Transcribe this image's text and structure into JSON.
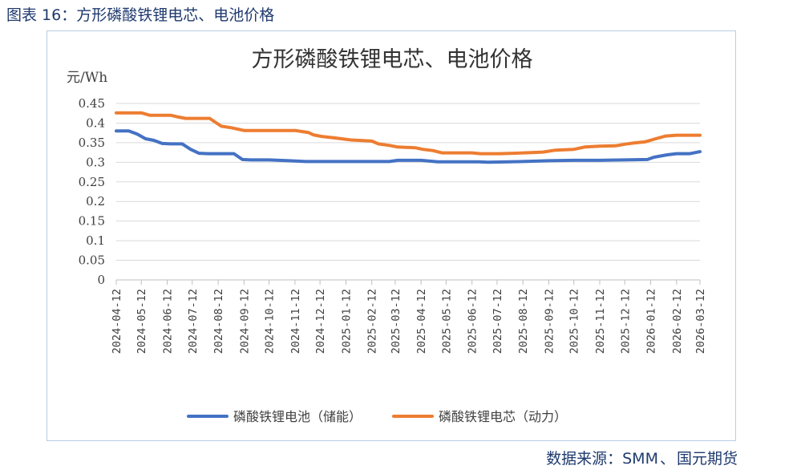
{
  "figure_caption": "图表 16：方形磷酸铁锂电芯、电池价格",
  "source": {
    "label": "数据来源：",
    "orgs": [
      "SMM",
      "国元期货"
    ],
    "separator": "、"
  },
  "colors": {
    "series_storage": "#4472c4",
    "series_power": "#ed7d31",
    "grid": "#d9d9d9",
    "axis_text": "#404040",
    "frame": "#b8cde3"
  },
  "chart_data": {
    "type": "line",
    "title": "方形磷酸铁锂电芯、电池价格",
    "ylabel": "元/Wh",
    "xlabel": "",
    "ylim": [
      0,
      0.45
    ],
    "yticks": [
      0,
      0.05,
      0.1,
      0.15,
      0.2,
      0.25,
      0.3,
      0.35,
      0.4,
      0.45
    ],
    "ytick_labels": [
      "0",
      "0.05",
      "0.1",
      "0.15",
      "0.2",
      "0.25",
      "0.3",
      "0.35",
      "0.4",
      "0.45"
    ],
    "x_ticks": [
      "2024-04-12",
      "2024-05-12",
      "2024-06-12",
      "2024-07-12",
      "2024-08-12",
      "2024-09-12",
      "2024-10-12",
      "2024-11-12",
      "2024-12-12",
      "2025-01-12",
      "2025-02-12",
      "2025-03-12",
      "2025-04-12",
      "2025-05-12",
      "2025-06-12",
      "2025-07-12",
      "2025-08-12",
      "2025-09-12",
      "2025-10-12",
      "2025-11-12",
      "2025-12-12",
      "2026-01-12",
      "2026-02-12",
      "2026-03-12"
    ],
    "grid": true,
    "legend_position": "bottom",
    "series": [
      {
        "name": "磷酸铁锂电池（储能）",
        "color": "#4472c4",
        "points": [
          [
            "2024-04-12",
            0.38
          ],
          [
            "2024-04-27",
            0.38
          ],
          [
            "2024-05-07",
            0.372
          ],
          [
            "2024-05-17",
            0.36
          ],
          [
            "2024-05-27",
            0.356
          ],
          [
            "2024-06-06",
            0.348
          ],
          [
            "2024-06-16",
            0.347
          ],
          [
            "2024-06-30",
            0.347
          ],
          [
            "2024-07-10",
            0.333
          ],
          [
            "2024-07-20",
            0.323
          ],
          [
            "2024-07-31",
            0.322
          ],
          [
            "2024-08-31",
            0.322
          ],
          [
            "2024-09-10",
            0.307
          ],
          [
            "2024-09-20",
            0.306
          ],
          [
            "2024-10-12",
            0.306
          ],
          [
            "2024-11-05",
            0.304
          ],
          [
            "2024-11-25",
            0.302
          ],
          [
            "2025-03-05",
            0.302
          ],
          [
            "2025-03-15",
            0.305
          ],
          [
            "2025-04-12",
            0.305
          ],
          [
            "2025-05-02",
            0.301
          ],
          [
            "2025-06-20",
            0.301
          ],
          [
            "2025-07-01",
            0.3
          ],
          [
            "2025-08-12",
            0.302
          ],
          [
            "2025-09-12",
            0.304
          ],
          [
            "2025-10-12",
            0.305
          ],
          [
            "2025-11-12",
            0.305
          ],
          [
            "2025-12-12",
            0.306
          ],
          [
            "2026-01-08",
            0.307
          ],
          [
            "2026-01-16",
            0.313
          ],
          [
            "2026-02-01",
            0.319
          ],
          [
            "2026-02-12",
            0.322
          ],
          [
            "2026-02-28",
            0.322
          ],
          [
            "2026-03-12",
            0.327
          ]
        ]
      },
      {
        "name": "磷酸铁锂电芯（动力）",
        "color": "#ed7d31",
        "points": [
          [
            "2024-04-12",
            0.426
          ],
          [
            "2024-05-12",
            0.426
          ],
          [
            "2024-05-22",
            0.42
          ],
          [
            "2024-06-16",
            0.42
          ],
          [
            "2024-06-24",
            0.416
          ],
          [
            "2024-07-04",
            0.412
          ],
          [
            "2024-08-02",
            0.412
          ],
          [
            "2024-08-08",
            0.403
          ],
          [
            "2024-08-16",
            0.392
          ],
          [
            "2024-08-28",
            0.388
          ],
          [
            "2024-09-12",
            0.381
          ],
          [
            "2024-11-12",
            0.381
          ],
          [
            "2024-11-28",
            0.376
          ],
          [
            "2024-12-04",
            0.37
          ],
          [
            "2024-12-14",
            0.366
          ],
          [
            "2024-12-30",
            0.362
          ],
          [
            "2025-01-18",
            0.357
          ],
          [
            "2025-02-12",
            0.354
          ],
          [
            "2025-02-20",
            0.347
          ],
          [
            "2025-03-05",
            0.343
          ],
          [
            "2025-03-15",
            0.339
          ],
          [
            "2025-04-05",
            0.337
          ],
          [
            "2025-04-14",
            0.333
          ],
          [
            "2025-04-26",
            0.33
          ],
          [
            "2025-05-07",
            0.324
          ],
          [
            "2025-06-12",
            0.324
          ],
          [
            "2025-06-22",
            0.322
          ],
          [
            "2025-07-15",
            0.322
          ],
          [
            "2025-08-01",
            0.323
          ],
          [
            "2025-08-25",
            0.325
          ],
          [
            "2025-09-05",
            0.326
          ],
          [
            "2025-09-20",
            0.331
          ],
          [
            "2025-10-12",
            0.333
          ],
          [
            "2025-10-25",
            0.339
          ],
          [
            "2025-11-12",
            0.341
          ],
          [
            "2025-12-01",
            0.342
          ],
          [
            "2025-12-12",
            0.346
          ],
          [
            "2025-12-22",
            0.349
          ],
          [
            "2026-01-05",
            0.352
          ],
          [
            "2026-01-18",
            0.36
          ],
          [
            "2026-01-30",
            0.367
          ],
          [
            "2026-02-12",
            0.369
          ],
          [
            "2026-03-12",
            0.369
          ]
        ]
      }
    ]
  }
}
